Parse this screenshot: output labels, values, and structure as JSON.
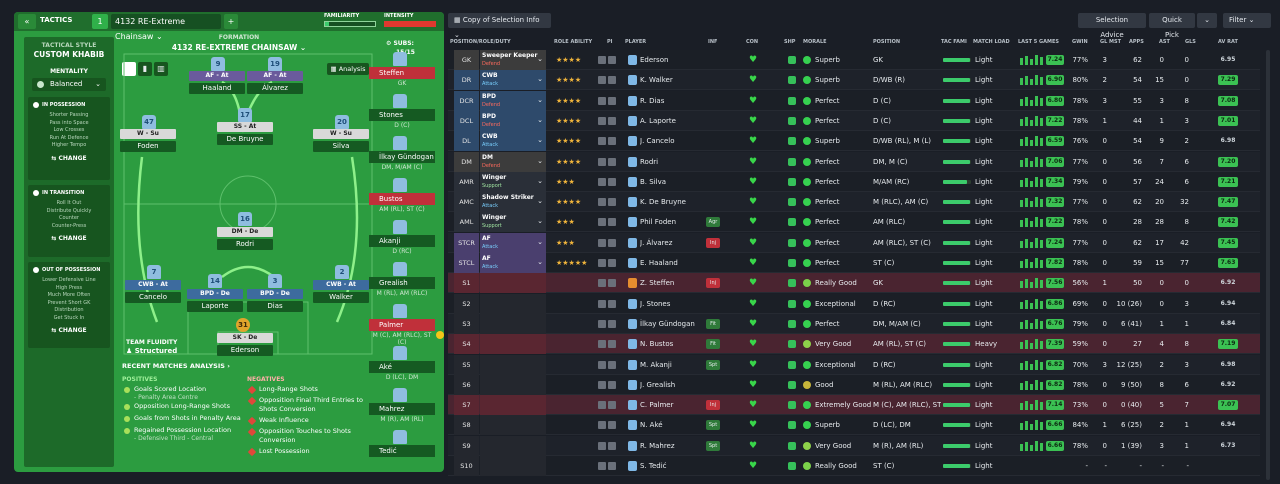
{
  "header": {
    "tactics_label": "TACTICS",
    "slot": "1",
    "tactic_name": "4132 RE-Extreme Chainsaw",
    "familiarity_label": "FAMILIARITY",
    "intensity_label": "INTENSITY"
  },
  "tactical_style": {
    "label": "TACTICAL STYLE",
    "value": "CUSTOM KHABIB"
  },
  "mentality": {
    "label": "MENTALITY",
    "value": "Balanced"
  },
  "in_possession": {
    "title": "IN POSSESSION",
    "lines": [
      "Shorter Passing",
      "Pass into Space",
      "Low Crosses",
      "Run At Defence",
      "Higher Tempo"
    ],
    "change": "CHANGE"
  },
  "in_transition": {
    "title": "IN TRANSITION",
    "lines": [
      "Roll It Out",
      "Distribute Quickly",
      "Counter",
      "Counter-Press"
    ],
    "change": "CHANGE"
  },
  "out_of_possession": {
    "title": "OUT OF POSSESSION",
    "lines": [
      "Lower Defensive Line",
      "High Press",
      "Much More Often",
      "Prevent Short GK",
      "Distribution",
      "Get Stuck In"
    ],
    "change": "CHANGE"
  },
  "formation": {
    "label": "FORMATION",
    "name": "4132 RE-EXTREME CHAINSAW",
    "analysis": "Analysis",
    "subs_label": "SUBS:",
    "subs_count": "15/15"
  },
  "pitch_players": [
    {
      "num": "9",
      "role": "AF - At",
      "name": "Haaland",
      "tag": "purple"
    },
    {
      "num": "19",
      "role": "AF - At",
      "name": "Álvarez",
      "tag": "purple"
    },
    {
      "num": "47",
      "role": "W - Su",
      "name": "Foden",
      "tag": "grey"
    },
    {
      "num": "17",
      "role": "SS - At",
      "name": "De Bruyne",
      "tag": "grey"
    },
    {
      "num": "20",
      "role": "W - Su",
      "name": "Silva",
      "tag": "grey"
    },
    {
      "num": "16",
      "role": "DM - De",
      "name": "Rodri",
      "tag": "grey"
    },
    {
      "num": "7",
      "role": "CWB - At",
      "name": "Cancelo",
      "tag": "blue"
    },
    {
      "num": "14",
      "role": "BPD - De",
      "name": "Laporte",
      "tag": "blue"
    },
    {
      "num": "3",
      "role": "BPD - De",
      "name": "Dias",
      "tag": "blue"
    },
    {
      "num": "2",
      "role": "CWB - At",
      "name": "Walker",
      "tag": "blue"
    },
    {
      "num": "31",
      "role": "SK - De",
      "name": "Ederson",
      "tag": "grey"
    }
  ],
  "team_fluidity": {
    "label": "TEAM FLUIDITY",
    "value": "Structured"
  },
  "subs": [
    {
      "name": "Steffen",
      "pos": "GK",
      "flag": "red"
    },
    {
      "name": "Stones",
      "pos": "D (C)",
      "flag": "dark"
    },
    {
      "name": "İlkay Gündogan",
      "pos": "DM, M/AM (C)",
      "flag": "dark"
    },
    {
      "name": "Bustos",
      "pos": "AM (RL), ST (C)",
      "flag": "red"
    },
    {
      "name": "Akanji",
      "pos": "D (RC)",
      "flag": "dark"
    },
    {
      "name": "Grealish",
      "pos": "M (RL), AM (RLC)",
      "flag": "dark"
    },
    {
      "name": "Palmer",
      "pos": "M (C), AM (RLC), ST (C)",
      "flag": "red"
    },
    {
      "name": "Aké",
      "pos": "D (LC), DM",
      "flag": "dark"
    },
    {
      "name": "Mahrez",
      "pos": "M (R), AM (RL)",
      "flag": "dark"
    },
    {
      "name": "Tedić",
      "pos": "",
      "flag": "dark"
    }
  ],
  "analysis": {
    "title": "RECENT MATCHES ANALYSIS",
    "positives_label": "POSITIVES",
    "positives": [
      {
        "text": "Goals Scored Location",
        "sub": "- Penalty Area Centre"
      },
      {
        "text": "Opposition Long-Range Shots",
        "sub": ""
      },
      {
        "text": "Goals from Shots in Penalty Area",
        "sub": ""
      },
      {
        "text": "Regained Possession Location",
        "sub": "- Defensive Third - Central"
      }
    ],
    "negatives_label": "NEGATIVES",
    "negatives": [
      {
        "text": "Long-Range Shots",
        "sub": ""
      },
      {
        "text": "Opposition Final Third Entries to Shots Conversion",
        "sub": ""
      },
      {
        "text": "Weak Influence",
        "sub": ""
      },
      {
        "text": "Opposition Touches to Shots Conversion",
        "sub": ""
      },
      {
        "text": "Lost Possession",
        "sub": ""
      }
    ]
  },
  "toolbar": {
    "view": "Copy of Selection Info",
    "selection_advice": "Selection Advice",
    "quick_pick": "Quick Pick",
    "filter": "Filter"
  },
  "columns": [
    "POSITION/ROLE/DUTY",
    "ROLE ABILITY",
    "PI",
    "PLAYER",
    "INF",
    "CON",
    "SHP",
    "MORALE",
    "POSITION",
    "TAC FAMI",
    "MATCH LOAD",
    "LAST 5 GAMES",
    "GWIN",
    "GL MST",
    "APPS",
    "AST",
    "GLS",
    "AV RAT"
  ],
  "rows": [
    {
      "slot": "GK",
      "role": "Sweeper Keeper",
      "duty": "Defend",
      "stars": "★★★★",
      "player": "Ederson",
      "inf": "",
      "morale": "Superb",
      "position": "GK",
      "load": "Light",
      "form": "7.24",
      "gwin": "77%",
      "glmst": "3",
      "apps": "62",
      "ast": "0",
      "gls": "0",
      "avr": "6.95",
      "slotcol": "#3c3c3c",
      "rolecol": "#3c3c3c",
      "highlight": false,
      "fam": 0.95
    },
    {
      "slot": "DR",
      "role": "CWB",
      "duty": "Attack",
      "stars": "★★★★",
      "player": "K. Walker",
      "inf": "",
      "morale": "Superb",
      "position": "D/WB (R)",
      "load": "Light",
      "form": "6.90",
      "gwin": "80%",
      "glmst": "2",
      "apps": "54",
      "ast": "15",
      "gls": "0",
      "avr": "7.29",
      "slotcol": "#2e4a6b",
      "rolecol": "#2e4a6b",
      "highlight": false,
      "fam": 0.95
    },
    {
      "slot": "DCR",
      "role": "BPD",
      "duty": "Defend",
      "stars": "★★★★",
      "player": "R. Dias",
      "inf": "",
      "morale": "Perfect",
      "position": "D (C)",
      "load": "Light",
      "form": "6.80",
      "gwin": "78%",
      "glmst": "3",
      "apps": "55",
      "ast": "3",
      "gls": "8",
      "avr": "7.08",
      "slotcol": "#2e4a6b",
      "rolecol": "#2e4a6b",
      "highlight": false,
      "fam": 0.95
    },
    {
      "slot": "DCL",
      "role": "BPD",
      "duty": "Defend",
      "stars": "★★★★",
      "player": "A. Laporte",
      "inf": "",
      "morale": "Perfect",
      "position": "D (C)",
      "load": "Light",
      "form": "7.22",
      "gwin": "78%",
      "glmst": "1",
      "apps": "44",
      "ast": "1",
      "gls": "3",
      "avr": "7.01",
      "slotcol": "#2e4a6b",
      "rolecol": "#2e4a6b",
      "highlight": false,
      "fam": 0.95
    },
    {
      "slot": "DL",
      "role": "CWB",
      "duty": "Attack",
      "stars": "★★★★",
      "player": "J. Cancelo",
      "inf": "",
      "morale": "Superb",
      "position": "D/WB (RL), M (L)",
      "load": "Light",
      "form": "6.59",
      "gwin": "76%",
      "glmst": "0",
      "apps": "54",
      "ast": "9",
      "gls": "2",
      "avr": "6.98",
      "slotcol": "#2e4a6b",
      "rolecol": "#2e4a6b",
      "highlight": false,
      "fam": 0.95
    },
    {
      "slot": "DM",
      "role": "DM",
      "duty": "Defend",
      "stars": "★★★★",
      "player": "Rodri",
      "inf": "",
      "morale": "Perfect",
      "position": "DM, M (C)",
      "load": "Light",
      "form": "7.06",
      "gwin": "77%",
      "glmst": "0",
      "apps": "56",
      "ast": "7",
      "gls": "6",
      "avr": "7.20",
      "slotcol": "#3c3c3c",
      "rolecol": "#3c3c3c",
      "highlight": false,
      "fam": 0.95
    },
    {
      "slot": "AMR",
      "role": "Winger",
      "duty": "Support",
      "stars": "★★★",
      "player": "B. Silva",
      "inf": "",
      "morale": "Perfect",
      "position": "M/AM (RC)",
      "load": "Light",
      "form": "7.34",
      "gwin": "79%",
      "glmst": "0",
      "apps": "57",
      "ast": "24",
      "gls": "6",
      "avr": "7.21",
      "slotcol": "#2a2f38",
      "rolecol": "#2a2f38",
      "highlight": false,
      "fam": 0.85
    },
    {
      "slot": "AMC",
      "role": "Shadow Striker",
      "duty": "Attack",
      "stars": "★★★★",
      "player": "K. De Bruyne",
      "inf": "",
      "morale": "Perfect",
      "position": "M (RLC), AM (C)",
      "load": "Light",
      "form": "7.32",
      "gwin": "77%",
      "glmst": "0",
      "apps": "62",
      "ast": "20",
      "gls": "32",
      "avr": "7.47",
      "slotcol": "#2a2f38",
      "rolecol": "#2a2f38",
      "highlight": false,
      "fam": 0.95
    },
    {
      "slot": "AML",
      "role": "Winger",
      "duty": "Support",
      "stars": "★★★",
      "player": "Phil Foden",
      "inf": "Agr",
      "morale": "Perfect",
      "position": "AM (RLC)",
      "load": "Light",
      "form": "7.22",
      "gwin": "78%",
      "glmst": "0",
      "apps": "28",
      "ast": "28",
      "gls": "8",
      "avr": "7.42",
      "slotcol": "#2a2f38",
      "rolecol": "#2a2f38",
      "highlight": false,
      "fam": 0.95
    },
    {
      "slot": "STCR",
      "role": "AF",
      "duty": "Attack",
      "stars": "★★★",
      "player": "J. Álvarez",
      "inf": "Inj",
      "morale": "Perfect",
      "position": "AM (RLC), ST (C)",
      "load": "Light",
      "form": "7.24",
      "gwin": "77%",
      "glmst": "0",
      "apps": "62",
      "ast": "17",
      "gls": "42",
      "avr": "7.45",
      "slotcol": "#4a3f6e",
      "rolecol": "#4a3f6e",
      "highlight": false,
      "fam": 0.95
    },
    {
      "slot": "STCL",
      "role": "AF",
      "duty": "Attack",
      "stars": "★★★★★",
      "player": "E. Haaland",
      "inf": "",
      "morale": "Perfect",
      "position": "ST (C)",
      "load": "Light",
      "form": "7.82",
      "gwin": "78%",
      "glmst": "0",
      "apps": "59",
      "ast": "15",
      "gls": "77",
      "avr": "7.63",
      "slotcol": "#4a3f6e",
      "rolecol": "#4a3f6e",
      "highlight": false,
      "fam": 0.95
    },
    {
      "slot": "S1",
      "role": "",
      "duty": "",
      "stars": "",
      "player": "Z. Steffen",
      "inf": "Inj",
      "morale": "Really Good",
      "position": "GK",
      "load": "Light",
      "form": "7.56",
      "gwin": "56%",
      "glmst": "1",
      "apps": "50",
      "ast": "0",
      "gls": "0",
      "avr": "6.92",
      "slotcol": "#5a2631",
      "rolecol": "#5a2631",
      "highlight": true,
      "fam": 0.95
    },
    {
      "slot": "S2",
      "role": "",
      "duty": "",
      "stars": "",
      "player": "J. Stones",
      "inf": "",
      "morale": "Exceptional",
      "position": "D (RC)",
      "load": "Light",
      "form": "6.86",
      "gwin": "69%",
      "glmst": "0",
      "apps": "10 (26)",
      "ast": "0",
      "gls": "3",
      "avr": "6.94",
      "slotcol": "#24272e",
      "rolecol": "#24272e",
      "highlight": false,
      "fam": 0.95
    },
    {
      "slot": "S3",
      "role": "",
      "duty": "",
      "stars": "",
      "player": "İlkay Gündogan",
      "inf": "Fit",
      "morale": "Perfect",
      "position": "DM, M/AM (C)",
      "load": "Light",
      "form": "6.76",
      "gwin": "79%",
      "glmst": "0",
      "apps": "6 (41)",
      "ast": "1",
      "gls": "1",
      "avr": "6.84",
      "slotcol": "#24272e",
      "rolecol": "#24272e",
      "highlight": false,
      "fam": 0.95
    },
    {
      "slot": "S4",
      "role": "",
      "duty": "",
      "stars": "",
      "player": "N. Bustos",
      "inf": "Fit",
      "morale": "Very Good",
      "position": "AM (RL), ST (C)",
      "load": "Heavy",
      "form": "7.39",
      "gwin": "59%",
      "glmst": "0",
      "apps": "27",
      "ast": "4",
      "gls": "8",
      "avr": "7.19",
      "slotcol": "#5a2631",
      "rolecol": "#5a2631",
      "highlight": true,
      "fam": 0.95
    },
    {
      "slot": "S5",
      "role": "",
      "duty": "",
      "stars": "",
      "player": "M. Akanji",
      "inf": "Spt",
      "morale": "Exceptional",
      "position": "D (RC)",
      "load": "Light",
      "form": "6.82",
      "gwin": "70%",
      "glmst": "3",
      "apps": "12 (25)",
      "ast": "2",
      "gls": "3",
      "avr": "6.98",
      "slotcol": "#24272e",
      "rolecol": "#24272e",
      "highlight": false,
      "fam": 0.95
    },
    {
      "slot": "S6",
      "role": "",
      "duty": "",
      "stars": "",
      "player": "J. Grealish",
      "inf": "",
      "morale": "Good",
      "position": "M (RL), AM (RLC)",
      "load": "Light",
      "form": "6.82",
      "gwin": "78%",
      "glmst": "0",
      "apps": "9 (50)",
      "ast": "8",
      "gls": "6",
      "avr": "6.92",
      "slotcol": "#24272e",
      "rolecol": "#24272e",
      "highlight": false,
      "fam": 0.95
    },
    {
      "slot": "S7",
      "role": "",
      "duty": "",
      "stars": "",
      "player": "C. Palmer",
      "inf": "Inj",
      "morale": "Extremely Good",
      "position": "M (C), AM (RLC), ST…",
      "load": "Light",
      "form": "7.14",
      "gwin": "73%",
      "glmst": "0",
      "apps": "0 (40)",
      "ast": "5",
      "gls": "7",
      "avr": "7.07",
      "slotcol": "#5a2631",
      "rolecol": "#5a2631",
      "highlight": true,
      "fam": 0.95
    },
    {
      "slot": "S8",
      "role": "",
      "duty": "",
      "stars": "",
      "player": "N. Aké",
      "inf": "Spt",
      "morale": "Superb",
      "position": "D (LC), DM",
      "load": "Light",
      "form": "6.66",
      "gwin": "84%",
      "glmst": "1",
      "apps": "6 (25)",
      "ast": "2",
      "gls": "1",
      "avr": "6.94",
      "slotcol": "#24272e",
      "rolecol": "#24272e",
      "highlight": false,
      "fam": 0.95
    },
    {
      "slot": "S9",
      "role": "",
      "duty": "",
      "stars": "",
      "player": "R. Mahrez",
      "inf": "Spt",
      "morale": "Very Good",
      "position": "M (R), AM (RL)",
      "load": "Light",
      "form": "6.66",
      "gwin": "78%",
      "glmst": "0",
      "apps": "1 (39)",
      "ast": "3",
      "gls": "1",
      "avr": "6.73",
      "slotcol": "#24272e",
      "rolecol": "#24272e",
      "highlight": false,
      "fam": 0.95
    },
    {
      "slot": "S10",
      "role": "",
      "duty": "",
      "stars": "",
      "player": "S. Tedić",
      "inf": "",
      "morale": "Really Good",
      "position": "ST (C)",
      "load": "Light",
      "form": "",
      "gwin": "-",
      "glmst": "-",
      "apps": "-",
      "ast": "-",
      "gls": "-",
      "avr": "",
      "slotcol": "#24272e",
      "rolecol": "#24272e",
      "highlight": false,
      "fam": 0.95
    }
  ]
}
